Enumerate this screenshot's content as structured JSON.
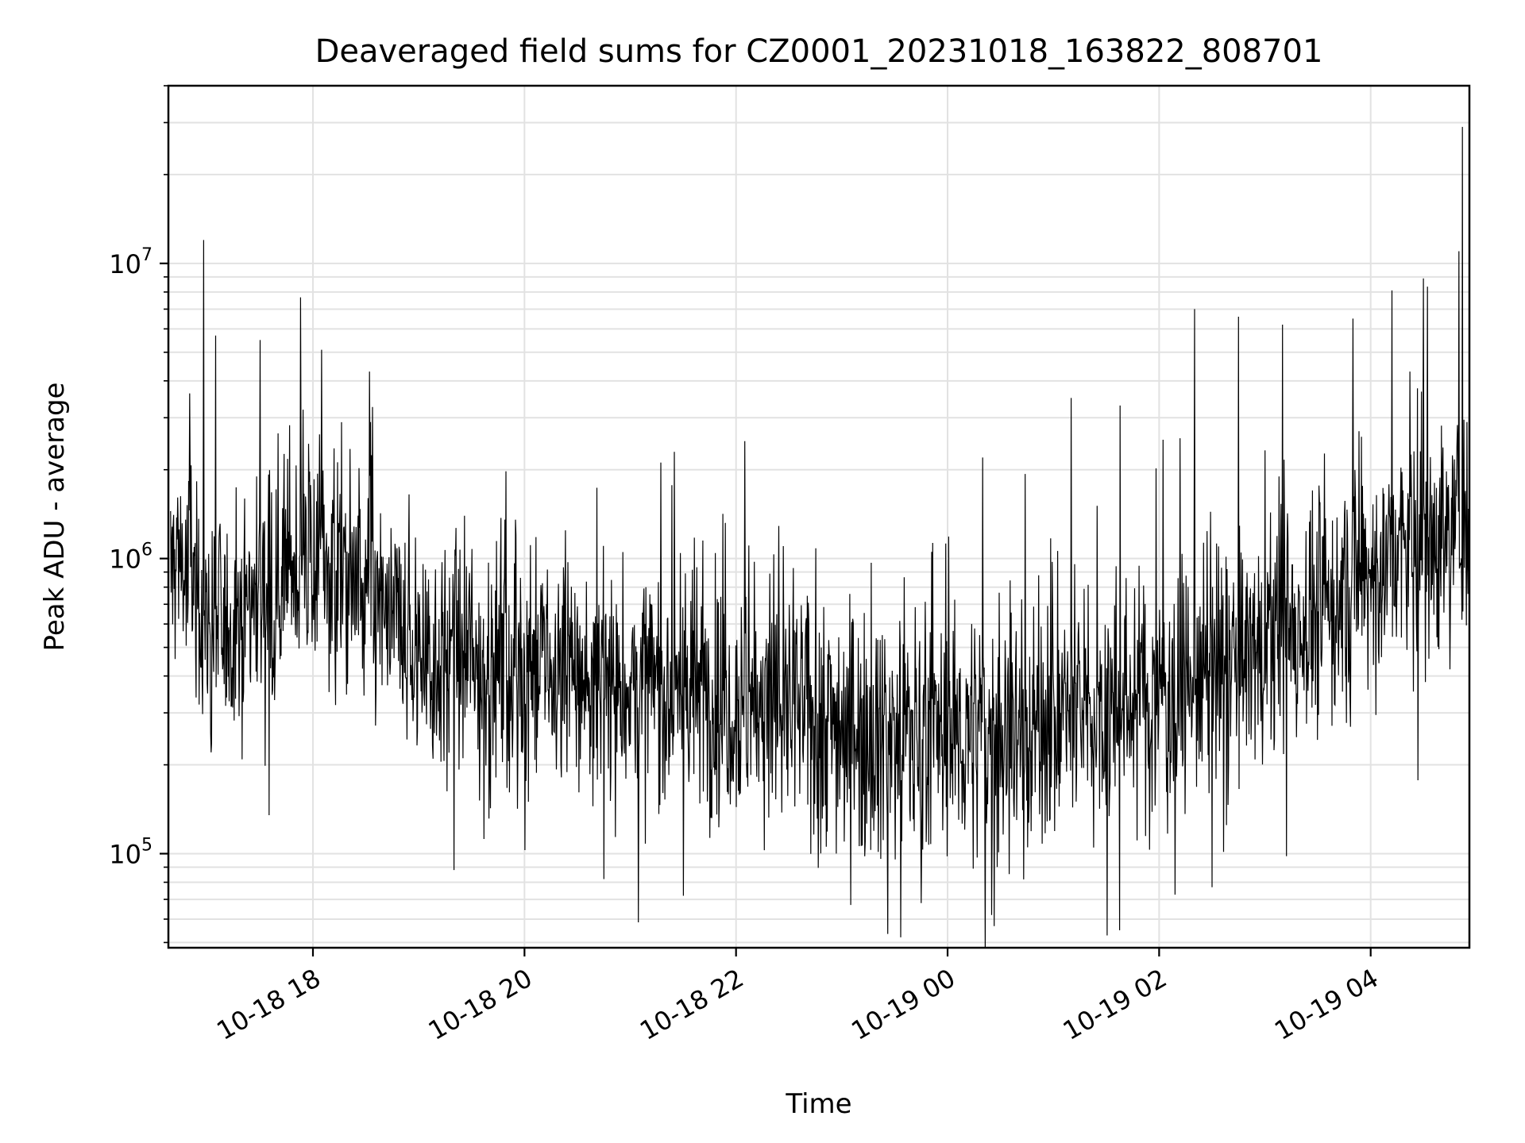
{
  "chart_data": {
    "type": "line",
    "title": "Deaveraged field sums for CZ0001_20231018_163822_808701",
    "xlabel": "Time",
    "ylabel": "Peak ADU - average",
    "yscale": "log",
    "xlim": [
      "2023-10-18 16:38",
      "2023-10-19 04:56"
    ],
    "ylim": [
      48000,
      40000000
    ],
    "grid": true,
    "x_ticks": [
      "10-18 18",
      "10-18 20",
      "10-18 22",
      "10-19 00",
      "10-19 02",
      "10-19 04"
    ],
    "y_ticks": [
      {
        "base": "10",
        "exp": "5",
        "value": 100000
      },
      {
        "base": "10",
        "exp": "6",
        "value": 1000000
      },
      {
        "base": "10",
        "exp": "7",
        "value": 10000000
      }
    ],
    "series": [
      {
        "color": "#000000",
        "x": [
          "2023-10-18 16:40",
          "2023-10-18 16:45",
          "2023-10-18 16:48",
          "2023-10-18 16:52",
          "2023-10-18 16:55",
          "2023-10-18 17:00",
          "2023-10-18 17:05",
          "2023-10-18 17:10",
          "2023-10-18 17:15",
          "2023-10-18 17:20",
          "2023-10-18 17:30",
          "2023-10-18 17:40",
          "2023-10-18 17:50",
          "2023-10-18 18:00",
          "2023-10-18 18:10",
          "2023-10-18 18:20",
          "2023-10-18 18:30",
          "2023-10-18 18:40",
          "2023-10-18 18:50",
          "2023-10-18 19:00",
          "2023-10-18 19:20",
          "2023-10-18 19:40",
          "2023-10-18 20:00",
          "2023-10-18 20:20",
          "2023-10-18 20:40",
          "2023-10-18 21:00",
          "2023-10-18 21:20",
          "2023-10-18 21:40",
          "2023-10-18 22:00",
          "2023-10-18 22:20",
          "2023-10-18 22:40",
          "2023-10-18 23:00",
          "2023-10-18 23:10",
          "2023-10-18 23:20",
          "2023-10-18 23:40",
          "2023-10-19 00:00",
          "2023-10-19 00:20",
          "2023-10-19 00:40",
          "2023-10-19 01:00",
          "2023-10-19 01:20",
          "2023-10-19 01:40",
          "2023-10-19 02:00",
          "2023-10-19 02:20",
          "2023-10-19 02:40",
          "2023-10-19 03:00",
          "2023-10-19 03:20",
          "2023-10-19 03:40",
          "2023-10-19 04:00",
          "2023-10-19 04:20",
          "2023-10-19 04:40",
          "2023-10-19 04:50",
          "2023-10-19 04:55"
        ],
        "y": [
          900000,
          1100000,
          800000,
          950000,
          700000,
          650000,
          600000,
          550000,
          600000,
          700000,
          750000,
          850000,
          950000,
          1000000,
          950000,
          850000,
          750000,
          650000,
          550000,
          480000,
          450000,
          430000,
          420000,
          400000,
          380000,
          370000,
          360000,
          350000,
          330000,
          320000,
          300000,
          280000,
          270000,
          260000,
          255000,
          250000,
          255000,
          260000,
          280000,
          300000,
          320000,
          350000,
          380000,
          420000,
          500000,
          600000,
          700000,
          900000,
          1100000,
          1200000,
          1300000,
          1400000
        ],
        "peaks_x": [
          "2023-10-18 16:58",
          "2023-10-18 17:30",
          "2023-10-18 18:05",
          "2023-10-18 18:32",
          "2023-10-18 21:25",
          "2023-10-18 22:05",
          "2023-10-19 00:20",
          "2023-10-19 01:10",
          "2023-10-19 01:38",
          "2023-10-19 02:20",
          "2023-10-19 02:45",
          "2023-10-19 03:10",
          "2023-10-19 03:50",
          "2023-10-19 04:12",
          "2023-10-19 04:30",
          "2023-10-19 04:50",
          "2023-10-19 04:52"
        ],
        "peaks_y": [
          12000000,
          5500000,
          5100000,
          4300000,
          2300000,
          2500000,
          2200000,
          3500000,
          3300000,
          7000000,
          6600000,
          6200000,
          6500000,
          8100000,
          8900000,
          11000000,
          29000000
        ],
        "troughs_x": [
          "2023-10-18 17:35",
          "2023-10-18 19:20",
          "2023-10-18 20:45",
          "2023-10-18 21:30",
          "2023-10-18 23:05",
          "2023-10-18 23:45",
          "2023-10-19 00:25",
          "2023-10-19 02:30"
        ],
        "troughs_y": [
          135000,
          88000,
          82000,
          72000,
          67000,
          68000,
          62000,
          77000
        ]
      }
    ]
  }
}
